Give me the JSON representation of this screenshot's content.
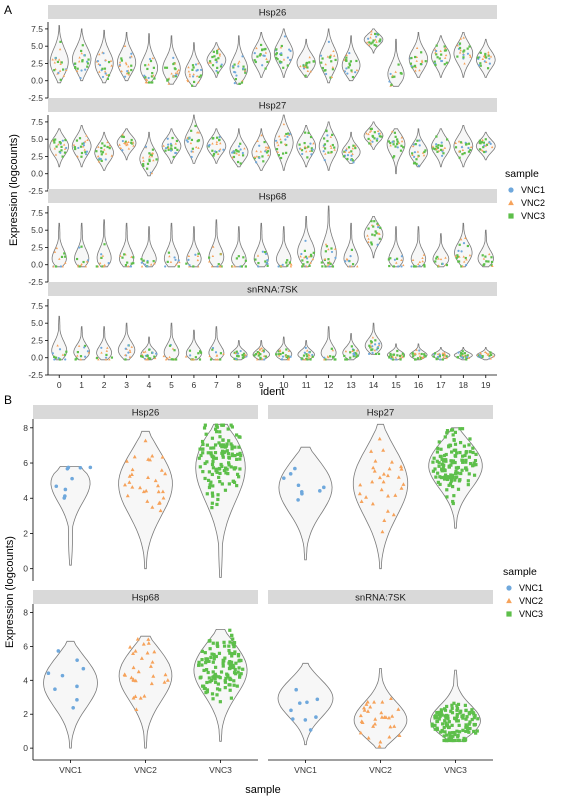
{
  "panels": {
    "a": "A",
    "b": "B"
  },
  "colors": {
    "VNC1": "#6fa8dc",
    "VNC2": "#f6a25a",
    "VNC3": "#5dbf4a"
  },
  "chart_data": [
    {
      "type": "violin",
      "panel": "A",
      "xlabel": "ident",
      "ylabel": "Expression (logcounts)",
      "x": [
        "0",
        "1",
        "2",
        "3",
        "4",
        "5",
        "6",
        "7",
        "8",
        "9",
        "10",
        "11",
        "12",
        "13",
        "14",
        "15",
        "16",
        "17",
        "18",
        "19"
      ],
      "ylim": [
        -2.5,
        8.5
      ],
      "yticks": [
        "-2.5",
        "0.0",
        "2.5",
        "5.0",
        "7.5"
      ],
      "legend": {
        "title": "sample",
        "position": "right",
        "entries": [
          "VNC1",
          "VNC2",
          "VNC3"
        ]
      },
      "facets": [
        {
          "name": "Hsp26",
          "violins": [
            {
              "x": "0",
              "min": -0.3,
              "max": 8.0,
              "mode": 2.5
            },
            {
              "x": "1",
              "min": 0.0,
              "max": 7.5,
              "mode": 3.0
            },
            {
              "x": "2",
              "min": -0.3,
              "max": 7.3,
              "mode": 2.3
            },
            {
              "x": "3",
              "min": 0.0,
              "max": 7.0,
              "mode": 2.5
            },
            {
              "x": "4",
              "min": -0.3,
              "max": 6.8,
              "mode": 1.5
            },
            {
              "x": "5",
              "min": -0.5,
              "max": 6.5,
              "mode": 1.5
            },
            {
              "x": "6",
              "min": -0.8,
              "max": 5.5,
              "mode": 1.0
            },
            {
              "x": "7",
              "min": 0.5,
              "max": 5.5,
              "mode": 3.0
            },
            {
              "x": "8",
              "min": -0.5,
              "max": 6.5,
              "mode": 1.5
            },
            {
              "x": "9",
              "min": 0.5,
              "max": 7.0,
              "mode": 3.5
            },
            {
              "x": "10",
              "min": 0.5,
              "max": 7.5,
              "mode": 4.0
            },
            {
              "x": "11",
              "min": 0.5,
              "max": 6.0,
              "mode": 2.5
            },
            {
              "x": "12",
              "min": -0.3,
              "max": 7.5,
              "mode": 3.0
            },
            {
              "x": "13",
              "min": 0.0,
              "max": 6.5,
              "mode": 2.0
            },
            {
              "x": "14",
              "min": 4.0,
              "max": 7.5,
              "mode": 6.0
            },
            {
              "x": "15",
              "min": -0.8,
              "max": 6.0,
              "mode": 0.5
            },
            {
              "x": "16",
              "min": 0.5,
              "max": 7.0,
              "mode": 3.0
            },
            {
              "x": "17",
              "min": 0.5,
              "max": 6.5,
              "mode": 3.5
            },
            {
              "x": "18",
              "min": 0.5,
              "max": 7.0,
              "mode": 4.0
            },
            {
              "x": "19",
              "min": 0.5,
              "max": 6.0,
              "mode": 3.0
            }
          ]
        },
        {
          "name": "Hsp27",
          "violins": [
            {
              "x": "0",
              "min": 1.0,
              "max": 6.5,
              "mode": 4.0
            },
            {
              "x": "1",
              "min": 1.0,
              "max": 7.0,
              "mode": 4.0
            },
            {
              "x": "2",
              "min": 0.5,
              "max": 6.0,
              "mode": 3.0
            },
            {
              "x": "3",
              "min": 2.0,
              "max": 6.5,
              "mode": 4.5
            },
            {
              "x": "4",
              "min": -0.3,
              "max": 6.0,
              "mode": 2.0
            },
            {
              "x": "5",
              "min": 1.5,
              "max": 6.5,
              "mode": 4.0
            },
            {
              "x": "6",
              "min": 1.5,
              "max": 8.5,
              "mode": 4.5
            },
            {
              "x": "7",
              "min": 1.5,
              "max": 6.5,
              "mode": 4.0
            },
            {
              "x": "8",
              "min": 1.0,
              "max": 6.5,
              "mode": 3.0
            },
            {
              "x": "9",
              "min": 0.5,
              "max": 6.5,
              "mode": 3.0
            },
            {
              "x": "10",
              "min": 0.5,
              "max": 8.5,
              "mode": 4.5
            },
            {
              "x": "11",
              "min": 1.0,
              "max": 7.0,
              "mode": 4.0
            },
            {
              "x": "12",
              "min": 0.5,
              "max": 7.5,
              "mode": 4.0
            },
            {
              "x": "13",
              "min": 1.5,
              "max": 6.0,
              "mode": 3.0
            },
            {
              "x": "14",
              "min": 3.5,
              "max": 7.5,
              "mode": 5.5
            },
            {
              "x": "15",
              "min": 0.0,
              "max": 6.5,
              "mode": 4.5
            },
            {
              "x": "16",
              "min": 1.0,
              "max": 6.5,
              "mode": 3.0
            },
            {
              "x": "17",
              "min": 1.0,
              "max": 6.5,
              "mode": 4.0
            },
            {
              "x": "18",
              "min": 1.0,
              "max": 7.0,
              "mode": 4.0
            },
            {
              "x": "19",
              "min": 2.0,
              "max": 6.0,
              "mode": 4.0
            }
          ]
        },
        {
          "name": "Hsp68",
          "violins": [
            {
              "x": "0",
              "min": -0.3,
              "max": 6.0,
              "mode": 0.3
            },
            {
              "x": "1",
              "min": -0.3,
              "max": 6.0,
              "mode": 0.3
            },
            {
              "x": "2",
              "min": -0.3,
              "max": 6.5,
              "mode": 0.3
            },
            {
              "x": "3",
              "min": -0.3,
              "max": 6.0,
              "mode": 0.3
            },
            {
              "x": "4",
              "min": -0.3,
              "max": 5.5,
              "mode": 0.3
            },
            {
              "x": "5",
              "min": -0.3,
              "max": 6.0,
              "mode": 0.3
            },
            {
              "x": "6",
              "min": -0.3,
              "max": 5.5,
              "mode": 0.3
            },
            {
              "x": "7",
              "min": -0.3,
              "max": 6.5,
              "mode": 0.5
            },
            {
              "x": "8",
              "min": -0.3,
              "max": 5.5,
              "mode": 0.3
            },
            {
              "x": "9",
              "min": -0.3,
              "max": 6.0,
              "mode": 0.3
            },
            {
              "x": "10",
              "min": -0.3,
              "max": 5.5,
              "mode": 0.3
            },
            {
              "x": "11",
              "min": -0.3,
              "max": 7.0,
              "mode": 1.5
            },
            {
              "x": "12",
              "min": -0.3,
              "max": 8.5,
              "mode": 1.0
            },
            {
              "x": "13",
              "min": -0.3,
              "max": 6.0,
              "mode": 0.3
            },
            {
              "x": "14",
              "min": 1.0,
              "max": 7.0,
              "mode": 4.5
            },
            {
              "x": "15",
              "min": -0.3,
              "max": 5.5,
              "mode": 0.3
            },
            {
              "x": "16",
              "min": -0.3,
              "max": 5.5,
              "mode": 0.3
            },
            {
              "x": "17",
              "min": -0.3,
              "max": 4.5,
              "mode": 0.5
            },
            {
              "x": "18",
              "min": -0.3,
              "max": 6.0,
              "mode": 1.5
            },
            {
              "x": "19",
              "min": -0.3,
              "max": 5.0,
              "mode": 0.5
            }
          ]
        },
        {
          "name": "snRNA:7SK",
          "violins": [
            {
              "x": "0",
              "min": -0.3,
              "max": 6.0,
              "mode": 0.5
            },
            {
              "x": "1",
              "min": -0.3,
              "max": 4.5,
              "mode": 0.5
            },
            {
              "x": "2",
              "min": -0.3,
              "max": 4.5,
              "mode": 0.3
            },
            {
              "x": "3",
              "min": -0.3,
              "max": 5.0,
              "mode": 0.8
            },
            {
              "x": "4",
              "min": -0.3,
              "max": 3.0,
              "mode": 0.3
            },
            {
              "x": "5",
              "min": -0.3,
              "max": 5.0,
              "mode": 0.3
            },
            {
              "x": "6",
              "min": -0.3,
              "max": 4.0,
              "mode": 0.3
            },
            {
              "x": "7",
              "min": -0.3,
              "max": 4.5,
              "mode": 0.3
            },
            {
              "x": "8",
              "min": -0.3,
              "max": 2.5,
              "mode": 0.3
            },
            {
              "x": "9",
              "min": -0.3,
              "max": 2.5,
              "mode": 0.3
            },
            {
              "x": "10",
              "min": -0.3,
              "max": 3.0,
              "mode": 0.3
            },
            {
              "x": "11",
              "min": -0.3,
              "max": 2.5,
              "mode": 0.3
            },
            {
              "x": "12",
              "min": -0.3,
              "max": 4.5,
              "mode": 0.3
            },
            {
              "x": "13",
              "min": -0.3,
              "max": 3.5,
              "mode": 0.5
            },
            {
              "x": "14",
              "min": 0.5,
              "max": 5.0,
              "mode": 1.5
            },
            {
              "x": "15",
              "min": -0.3,
              "max": 2.0,
              "mode": 0.3
            },
            {
              "x": "16",
              "min": -0.3,
              "max": 2.0,
              "mode": 0.3
            },
            {
              "x": "17",
              "min": -0.3,
              "max": 1.5,
              "mode": 0.3
            },
            {
              "x": "18",
              "min": -0.3,
              "max": 1.5,
              "mode": 0.3
            },
            {
              "x": "19",
              "min": -0.3,
              "max": 1.5,
              "mode": 0.3
            }
          ]
        }
      ]
    },
    {
      "type": "violin",
      "panel": "B",
      "xlabel": "sample",
      "ylabel": "Expression (logcounts)",
      "x": [
        "VNC1",
        "VNC2",
        "VNC3"
      ],
      "ylim": [
        -0.7,
        8.5
      ],
      "yticks": [
        "0",
        "2",
        "4",
        "6",
        "8"
      ],
      "legend": {
        "title": "sample",
        "position": "right",
        "entries": [
          "VNC1",
          "VNC2",
          "VNC3"
        ]
      },
      "facets": [
        {
          "name": "Hsp26",
          "violins": [
            {
              "x": "VNC1",
              "min": 0.2,
              "max": 5.8,
              "mode": 5.5
            },
            {
              "x": "VNC2",
              "min": 0.0,
              "max": 7.8,
              "mode": 5.0
            },
            {
              "x": "VNC3",
              "min": -0.5,
              "max": 8.2,
              "mode": 6.2
            }
          ]
        },
        {
          "name": "Hsp27",
          "violins": [
            {
              "x": "VNC1",
              "min": 0.5,
              "max": 6.9,
              "mode": 4.8
            },
            {
              "x": "VNC2",
              "min": 0.0,
              "max": 8.2,
              "mode": 5.0
            },
            {
              "x": "VNC3",
              "min": 2.3,
              "max": 8.0,
              "mode": 6.0
            }
          ]
        },
        {
          "name": "Hsp68",
          "violins": [
            {
              "x": "VNC1",
              "min": 0.0,
              "max": 6.3,
              "mode": 4.0
            },
            {
              "x": "VNC2",
              "min": 0.0,
              "max": 6.6,
              "mode": 4.5
            },
            {
              "x": "VNC3",
              "min": 0.4,
              "max": 7.0,
              "mode": 4.8
            }
          ]
        },
        {
          "name": "snRNA:7SK",
          "violins": [
            {
              "x": "VNC1",
              "min": 0.2,
              "max": 5.0,
              "mode": 3.0
            },
            {
              "x": "VNC2",
              "min": 0.0,
              "max": 4.7,
              "mode": 1.5
            },
            {
              "x": "VNC3",
              "min": 0.4,
              "max": 4.6,
              "mode": 1.4
            }
          ]
        }
      ]
    }
  ]
}
